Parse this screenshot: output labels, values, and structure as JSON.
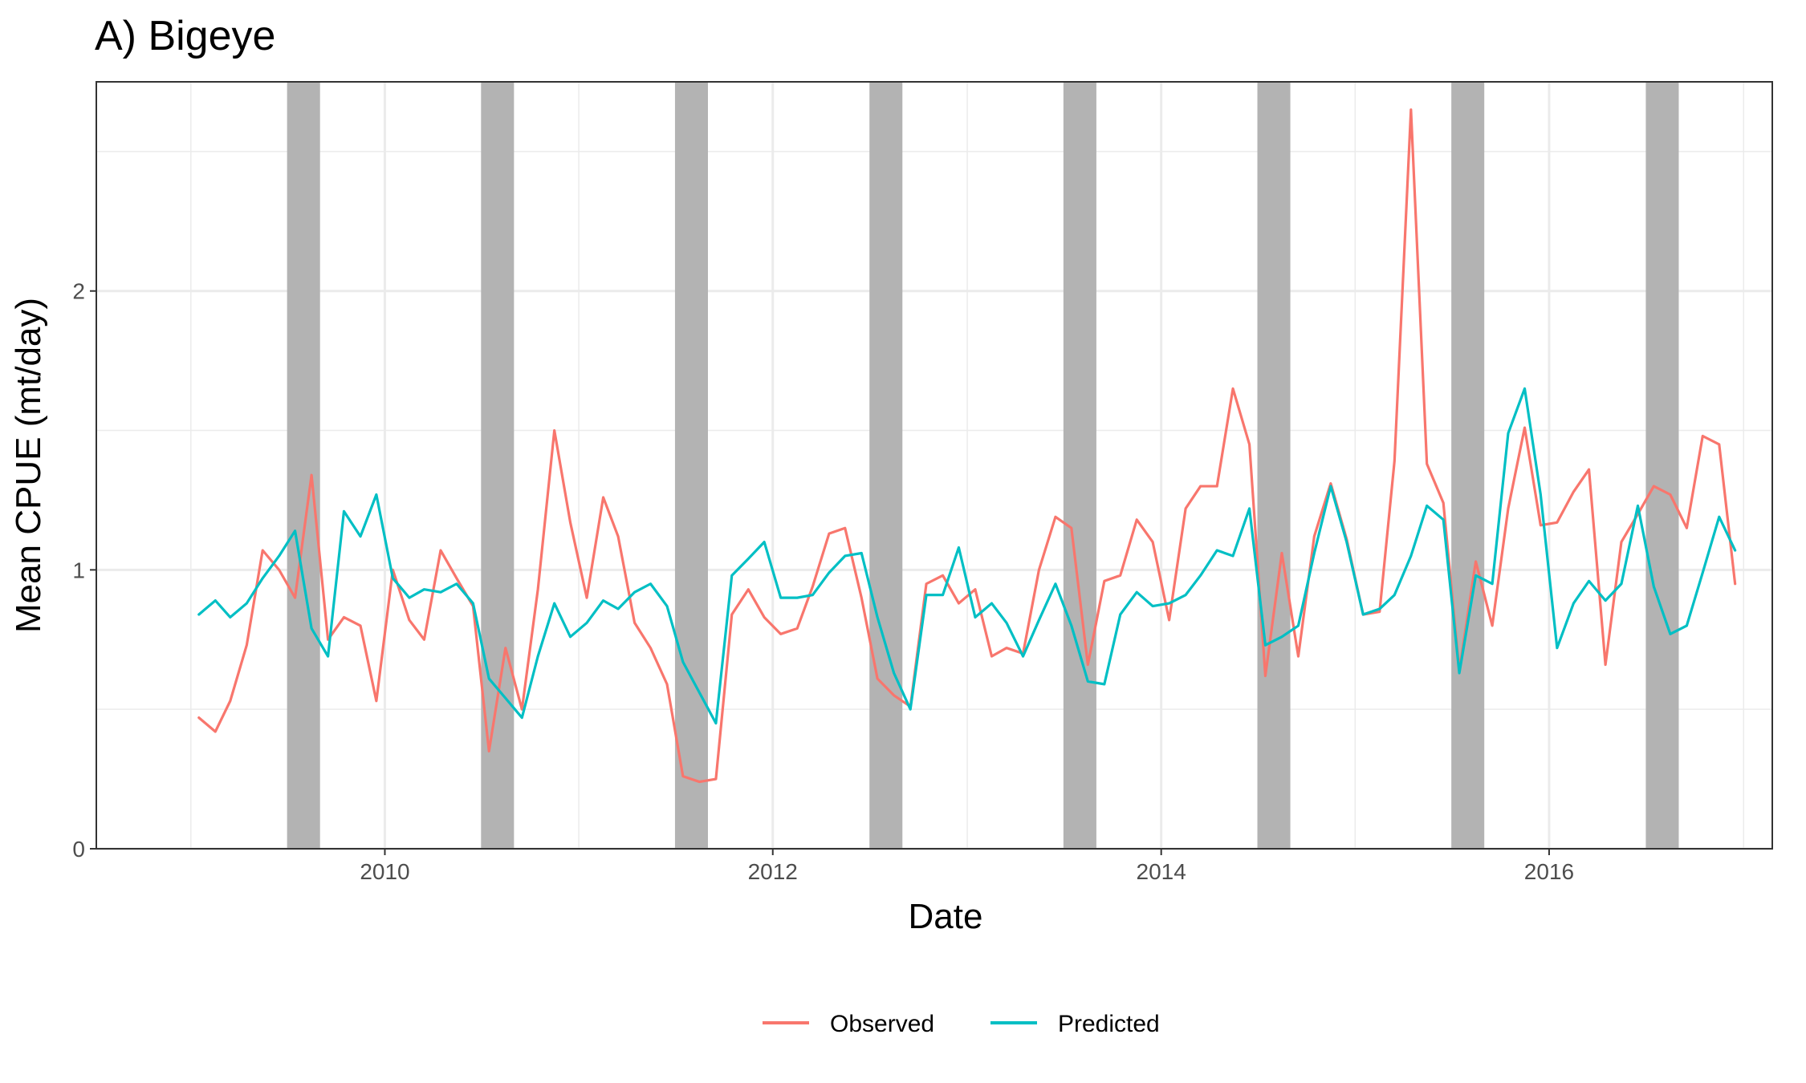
{
  "chart_data": {
    "type": "line",
    "title": "A) Bigeye",
    "xlabel": "Date",
    "ylabel": "Mean CPUE (mt/day)",
    "x_range": [
      "2008-07-07",
      "2017-02-24"
    ],
    "ylim": [
      0,
      2.75
    ],
    "x_ticks": [
      "2010",
      "2012",
      "2014",
      "2016"
    ],
    "y_ticks": [
      "0",
      "1",
      "2"
    ],
    "grid": true,
    "legend_position": "bottom",
    "colors": {
      "Observed": "#F8766D",
      "Predicted": "#00BFC4",
      "shade": "#B3B3B3"
    },
    "shaded_periods": [
      [
        "2009-07",
        "2009-08"
      ],
      [
        "2010-07",
        "2010-08"
      ],
      [
        "2011-07",
        "2011-08"
      ],
      [
        "2012-07",
        "2012-08"
      ],
      [
        "2013-07",
        "2013-08"
      ],
      [
        "2014-07",
        "2014-08"
      ],
      [
        "2015-07",
        "2015-08"
      ],
      [
        "2016-07",
        "2016-08"
      ]
    ],
    "x": [
      "2009-01",
      "2009-02",
      "2009-03",
      "2009-04",
      "2009-05",
      "2009-06",
      "2009-07",
      "2009-08",
      "2009-09",
      "2009-10",
      "2009-11",
      "2009-12",
      "2010-01",
      "2010-02",
      "2010-03",
      "2010-04",
      "2010-05",
      "2010-06",
      "2010-07",
      "2010-08",
      "2010-09",
      "2010-10",
      "2010-11",
      "2010-12",
      "2011-01",
      "2011-02",
      "2011-03",
      "2011-04",
      "2011-05",
      "2011-06",
      "2011-07",
      "2011-08",
      "2011-09",
      "2011-10",
      "2011-11",
      "2011-12",
      "2012-01",
      "2012-02",
      "2012-03",
      "2012-04",
      "2012-05",
      "2012-06",
      "2012-07",
      "2012-08",
      "2012-09",
      "2012-10",
      "2012-11",
      "2012-12",
      "2013-01",
      "2013-02",
      "2013-03",
      "2013-04",
      "2013-05",
      "2013-06",
      "2013-07",
      "2013-08",
      "2013-09",
      "2013-10",
      "2013-11",
      "2013-12",
      "2014-01",
      "2014-02",
      "2014-03",
      "2014-04",
      "2014-05",
      "2014-06",
      "2014-07",
      "2014-08",
      "2014-09",
      "2014-10",
      "2014-11",
      "2014-12",
      "2015-01",
      "2015-02",
      "2015-03",
      "2015-04",
      "2015-05",
      "2015-06",
      "2015-07",
      "2015-08",
      "2015-09",
      "2015-10",
      "2015-11",
      "2015-12",
      "2016-01",
      "2016-02",
      "2016-03",
      "2016-04",
      "2016-05",
      "2016-06",
      "2016-07",
      "2016-08",
      "2016-09",
      "2016-10",
      "2016-11",
      "2016-12"
    ],
    "series": [
      {
        "name": "Observed",
        "values": [
          0.47,
          0.42,
          0.53,
          0.73,
          1.07,
          1.0,
          0.9,
          1.34,
          0.75,
          0.83,
          0.8,
          0.53,
          1.0,
          0.82,
          0.75,
          1.07,
          0.97,
          0.87,
          0.35,
          0.72,
          0.5,
          0.93,
          1.5,
          1.17,
          0.9,
          1.26,
          1.12,
          0.81,
          0.72,
          0.59,
          0.26,
          0.24,
          0.25,
          0.84,
          0.93,
          0.83,
          0.77,
          0.79,
          0.94,
          1.13,
          1.15,
          0.9,
          0.61,
          0.55,
          0.51,
          0.95,
          0.98,
          0.88,
          0.93,
          0.69,
          0.72,
          0.7,
          1.0,
          1.19,
          1.15,
          0.66,
          0.96,
          0.98,
          1.18,
          1.1,
          0.82,
          1.22,
          1.3,
          1.3,
          1.65,
          1.45,
          0.62,
          1.06,
          0.69,
          1.12,
          1.31,
          1.11,
          0.84,
          0.85,
          1.39,
          2.65,
          1.38,
          1.24,
          0.64,
          1.03,
          0.8,
          1.22,
          1.51,
          1.16,
          1.17,
          1.28,
          1.36,
          0.66,
          1.1,
          1.2,
          1.3,
          1.27,
          1.15,
          1.48,
          1.45,
          0.95
        ]
      },
      {
        "name": "Predicted",
        "values": [
          0.84,
          0.89,
          0.83,
          0.88,
          0.97,
          1.05,
          1.14,
          0.79,
          0.69,
          1.21,
          1.12,
          1.27,
          0.97,
          0.9,
          0.93,
          0.92,
          0.95,
          0.88,
          0.61,
          0.54,
          0.47,
          0.69,
          0.88,
          0.76,
          0.81,
          0.89,
          0.86,
          0.92,
          0.95,
          0.87,
          0.67,
          0.56,
          0.45,
          0.98,
          1.04,
          1.1,
          0.9,
          0.9,
          0.91,
          0.99,
          1.05,
          1.06,
          0.83,
          0.63,
          0.5,
          0.91,
          0.91,
          1.08,
          0.83,
          0.88,
          0.81,
          0.69,
          0.82,
          0.95,
          0.8,
          0.6,
          0.59,
          0.84,
          0.92,
          0.87,
          0.88,
          0.91,
          0.98,
          1.07,
          1.05,
          1.22,
          0.73,
          0.76,
          0.8,
          1.06,
          1.3,
          1.1,
          0.84,
          0.86,
          0.91,
          1.05,
          1.23,
          1.18,
          0.63,
          0.98,
          0.95,
          1.49,
          1.65,
          1.27,
          0.72,
          0.88,
          0.96,
          0.89,
          0.95,
          1.23,
          0.94,
          0.77,
          0.8,
          0.99,
          1.19,
          1.07
        ]
      }
    ]
  }
}
